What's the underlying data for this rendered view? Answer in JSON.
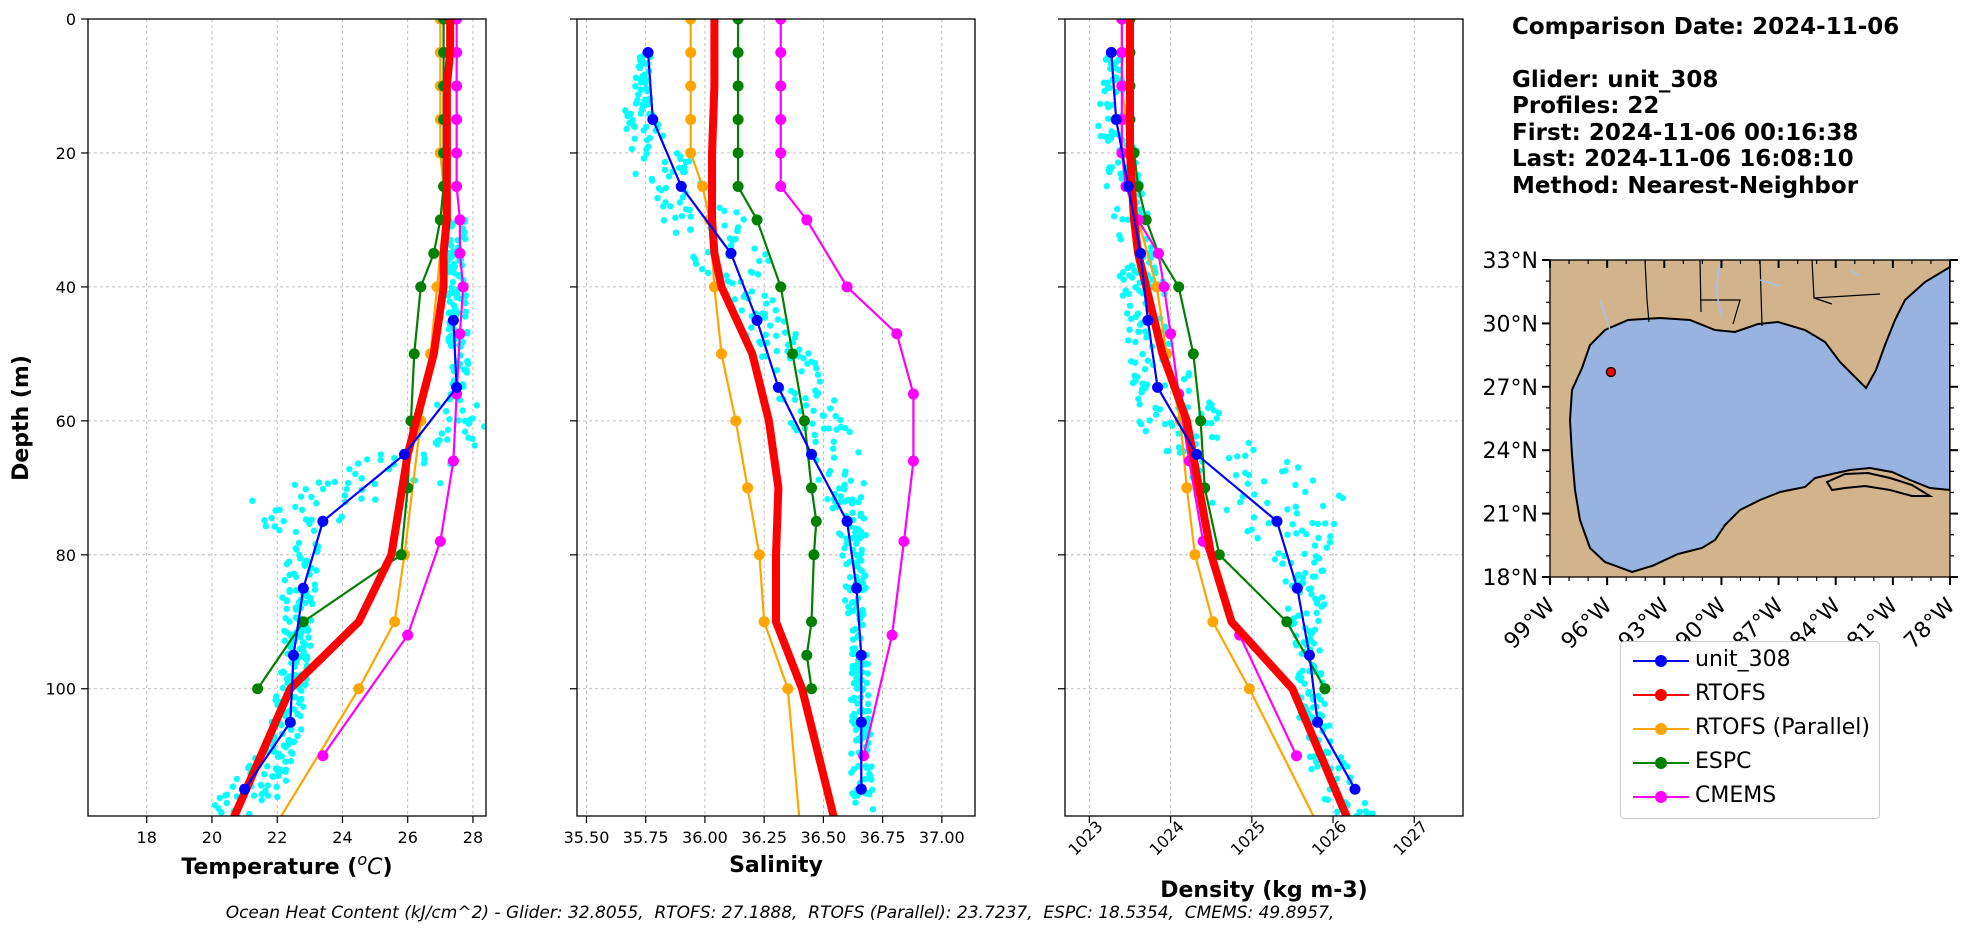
{
  "info": {
    "comparison_date": "Comparison Date: 2024-11-06",
    "glider": "Glider: unit_308",
    "profiles": "Profiles: 22",
    "first": "First: 2024-11-06 00:16:38",
    "last": "Last: 2024-11-06 16:08:10",
    "method": "Method: Nearest-Neighbor"
  },
  "footer": "Ocean Heat Content (kJ/cm^2) - Glider: 32.8055,  RTOFS: 27.1888,  RTOFS (Parallel): 23.7237,  ESPC: 18.5354,  CMEMS: 49.8957,",
  "legend": [
    {
      "name": "unit_308",
      "color": "#0000ff"
    },
    {
      "name": "RTOFS",
      "color": "#ff0000"
    },
    {
      "name": "RTOFS (Parallel)",
      "color": "#ffa500"
    },
    {
      "name": "ESPC",
      "color": "#008000"
    },
    {
      "name": "CMEMS",
      "color": "#ff00ff"
    }
  ],
  "colors": {
    "glider_raw": "#00ffff",
    "unit_308": "#0000ff",
    "RTOFS": "#ff0000",
    "RTOFS (Parallel)": "#ffa500",
    "ESPC": "#008000",
    "CMEMS": "#ff00ff",
    "land": "#d2b48c",
    "ocean": "#99b3e0",
    "glider_marker": "#ff0000"
  },
  "map": {
    "lat_ticks": [
      "33°N",
      "30°N",
      "27°N",
      "24°N",
      "21°N",
      "18°N"
    ],
    "lon_ticks": [
      "99°W",
      "96°W",
      "93°W",
      "90°W",
      "87°W",
      "84°W",
      "81°W",
      "78°W"
    ],
    "lon_range": [
      -99,
      -78
    ],
    "lat_range": [
      18,
      33
    ],
    "glider_location": {
      "lon": -95.8,
      "lat": 27.7
    }
  },
  "chart_data": [
    {
      "type": "line",
      "xlabel": "Temperature (°C)",
      "ylabel": "Depth (m)",
      "xlim": [
        16.2,
        28.4
      ],
      "ylim": [
        119,
        0
      ],
      "xticks": [
        18,
        20,
        22,
        24,
        26,
        28
      ],
      "yticks": [
        0,
        20,
        40,
        60,
        80,
        100
      ],
      "grid": true,
      "series": [
        {
          "name": "unit_308",
          "x": [
            27.4,
            27.5,
            25.9,
            23.4,
            22.8,
            22.5,
            22.4,
            21.0
          ],
          "y": [
            45,
            55,
            65,
            75,
            85,
            95,
            105,
            115
          ]
        },
        {
          "name": "RTOFS",
          "x": [
            27.3,
            27.3,
            27.2,
            27.2,
            27.2,
            27.1,
            27.1,
            26.8,
            26.0,
            25.5,
            24.5,
            22.4,
            20.6
          ],
          "y": [
            0,
            5,
            10,
            20,
            30,
            35,
            40,
            50,
            65,
            80,
            90,
            100,
            120
          ]
        },
        {
          "name": "RTOFS (Parallel)",
          "x": [
            27.0,
            27.0,
            27.0,
            27.0,
            27.0,
            27.1,
            27.1,
            26.9,
            26.7,
            26.4,
            25.9,
            25.6,
            24.5,
            22.0
          ],
          "y": [
            0,
            5,
            10,
            15,
            20,
            25,
            30,
            40,
            50,
            60,
            80,
            90,
            100,
            120
          ]
        },
        {
          "name": "ESPC",
          "x": [
            27.1,
            27.1,
            27.1,
            27.1,
            27.1,
            27.1,
            27.0,
            26.8,
            26.4,
            26.2,
            26.1,
            26.0,
            25.8,
            22.8,
            21.4
          ],
          "y": [
            0,
            5,
            10,
            15,
            20,
            25,
            30,
            35,
            40,
            50,
            60,
            70,
            80,
            90,
            100
          ]
        },
        {
          "name": "CMEMS",
          "x": [
            27.5,
            27.5,
            27.5,
            27.5,
            27.5,
            27.5,
            27.6,
            27.6,
            27.7,
            27.6,
            27.5,
            27.4,
            27.0,
            26.0,
            23.4
          ],
          "y": [
            0,
            5,
            10,
            15,
            20,
            25,
            30,
            35,
            40,
            47,
            56,
            66,
            78,
            92,
            110
          ]
        }
      ]
    },
    {
      "type": "line",
      "xlabel": "Salinity",
      "ylim": [
        119,
        0
      ],
      "xlim": [
        35.46,
        37.14
      ],
      "xticks": [
        35.5,
        35.75,
        36.0,
        36.25,
        36.5,
        36.75,
        37.0
      ],
      "tick_labels": [
        "35.50",
        "35.75",
        "36.00",
        "36.25",
        "36.50",
        "36.75",
        "37.00"
      ],
      "grid": true,
      "series": [
        {
          "name": "unit_308",
          "x": [
            35.76,
            35.78,
            35.9,
            36.11,
            36.22,
            36.31,
            36.45,
            36.6,
            36.64,
            36.66,
            36.66,
            36.66
          ],
          "y": [
            5,
            15,
            25,
            35,
            45,
            55,
            65,
            75,
            85,
            95,
            105,
            115
          ]
        },
        {
          "name": "RTOFS",
          "x": [
            36.04,
            36.04,
            36.03,
            36.03,
            36.04,
            36.07,
            36.2,
            36.27,
            36.31,
            36.3,
            36.3,
            36.41,
            36.55
          ],
          "y": [
            0,
            10,
            20,
            30,
            35,
            40,
            50,
            60,
            70,
            80,
            90,
            100,
            120
          ]
        },
        {
          "name": "RTOFS (Parallel)",
          "x": [
            35.94,
            35.94,
            35.94,
            35.94,
            35.94,
            35.99,
            36.02,
            36.04,
            36.07,
            36.13,
            36.18,
            36.23,
            36.25,
            36.35,
            36.4
          ],
          "y": [
            0,
            5,
            10,
            15,
            20,
            25,
            30,
            40,
            50,
            60,
            70,
            80,
            90,
            100,
            120
          ]
        },
        {
          "name": "ESPC",
          "x": [
            36.14,
            36.14,
            36.14,
            36.14,
            36.14,
            36.14,
            36.22,
            36.32,
            36.37,
            36.42,
            36.45,
            36.47,
            36.46,
            36.45,
            36.43,
            36.45
          ],
          "y": [
            0,
            5,
            10,
            15,
            20,
            25,
            30,
            40,
            50,
            60,
            70,
            75,
            80,
            90,
            95,
            100
          ]
        },
        {
          "name": "CMEMS",
          "x": [
            36.32,
            36.32,
            36.32,
            36.32,
            36.32,
            36.32,
            36.43,
            36.6,
            36.81,
            36.88,
            36.88,
            36.84,
            36.79,
            36.67
          ],
          "y": [
            0,
            5,
            10,
            15,
            20,
            25,
            30,
            40,
            47,
            56,
            66,
            78,
            92,
            110
          ]
        }
      ]
    },
    {
      "type": "line",
      "xlabel": "Density (kg m-3)",
      "ylim": [
        119,
        0
      ],
      "xlim": [
        1022.7,
        1027.6
      ],
      "xticks": [
        1023,
        1024,
        1025,
        1026,
        1027
      ],
      "grid": true,
      "series": [
        {
          "name": "unit_308",
          "x": [
            1023.27,
            1023.33,
            1023.48,
            1023.63,
            1023.72,
            1023.84,
            1024.32,
            1025.31,
            1025.56,
            1025.71,
            1025.81,
            1026.27
          ],
          "y": [
            5,
            15,
            25,
            35,
            45,
            55,
            65,
            75,
            85,
            95,
            105,
            115
          ]
        },
        {
          "name": "RTOFS",
          "x": [
            1023.5,
            1023.5,
            1023.5,
            1023.55,
            1023.6,
            1023.7,
            1023.9,
            1024.2,
            1024.5,
            1024.75,
            1025.5,
            1026.2
          ],
          "y": [
            0,
            10,
            20,
            30,
            35,
            40,
            50,
            60,
            80,
            90,
            100,
            120
          ]
        },
        {
          "name": "RTOFS (Parallel)",
          "x": [
            1023.4,
            1023.4,
            1023.4,
            1023.45,
            1023.48,
            1023.55,
            1023.6,
            1023.83,
            1023.95,
            1024.12,
            1024.2,
            1024.3,
            1024.52,
            1024.97,
            1025.8
          ],
          "y": [
            0,
            5,
            10,
            15,
            20,
            25,
            30,
            40,
            50,
            60,
            70,
            80,
            90,
            100,
            120
          ]
        },
        {
          "name": "ESPC",
          "x": [
            1023.5,
            1023.5,
            1023.5,
            1023.5,
            1023.55,
            1023.6,
            1023.7,
            1023.85,
            1024.1,
            1024.28,
            1024.37,
            1024.42,
            1024.6,
            1025.43,
            1025.9
          ],
          "y": [
            0,
            5,
            10,
            15,
            20,
            25,
            30,
            35,
            40,
            50,
            60,
            70,
            80,
            90,
            100
          ]
        },
        {
          "name": "CMEMS",
          "x": [
            1023.4,
            1023.4,
            1023.4,
            1023.4,
            1023.4,
            1023.45,
            1023.6,
            1023.85,
            1023.92,
            1024.0,
            1024.1,
            1024.23,
            1024.4,
            1024.85,
            1025.55
          ],
          "y": [
            0,
            5,
            10,
            15,
            20,
            25,
            30,
            35,
            40,
            47,
            56,
            66,
            78,
            92,
            110
          ]
        }
      ]
    }
  ]
}
